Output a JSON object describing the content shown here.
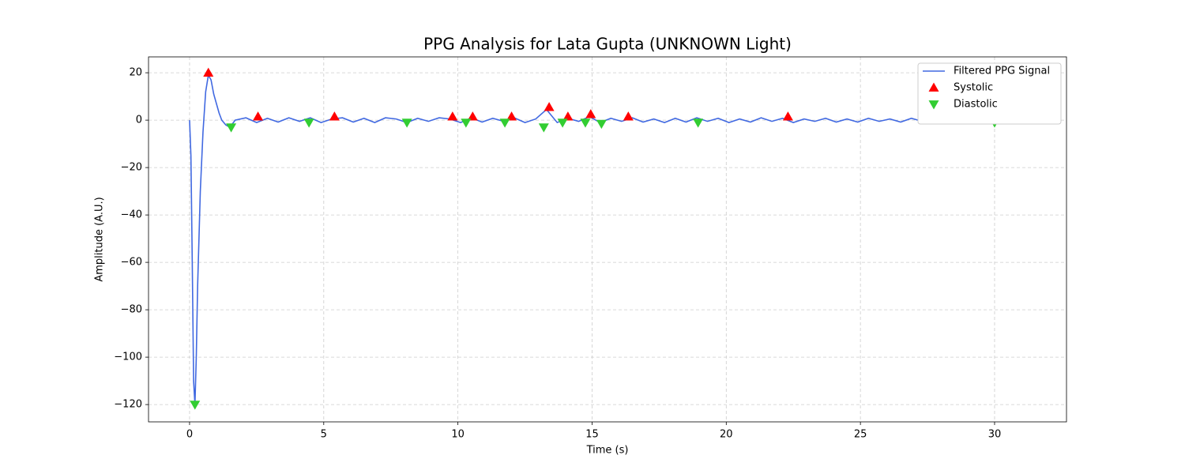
{
  "chart_data": {
    "type": "line",
    "title": "PPG Analysis for Lata Gupta (UNKNOWN Light)",
    "x_label": "Time (s)",
    "y_label": "Amplitude (A.U.)",
    "xlim": [
      -1.53,
      32.68
    ],
    "ylim": [
      -127.3,
      26.7
    ],
    "xticks": [
      0,
      5,
      10,
      15,
      20,
      25,
      30
    ],
    "yticks": [
      {
        "value": -120,
        "label": "−120"
      },
      {
        "value": -100,
        "label": "−100"
      },
      {
        "value": -80,
        "label": "−80"
      },
      {
        "value": -60,
        "label": "−60"
      },
      {
        "value": -40,
        "label": "−40"
      },
      {
        "value": -20,
        "label": "−20"
      },
      0,
      20
    ],
    "grid": true,
    "legend": "upper right",
    "series": [
      {
        "name": "Filtered PPG Signal",
        "type": "line",
        "color": "#4169e1",
        "x": [
          0,
          0.05,
          0.1,
          0.15,
          0.2,
          0.25,
          0.3,
          0.4,
          0.5,
          0.6,
          0.7,
          0.8,
          0.9,
          1.0,
          1.1,
          1.2,
          1.35,
          1.5,
          1.7,
          2.1,
          2.5,
          2.9,
          3.3,
          3.7,
          4.1,
          4.5,
          4.9,
          5.3,
          5.7,
          6.1,
          6.5,
          6.9,
          7.3,
          7.7,
          8.1,
          8.5,
          8.9,
          9.3,
          9.7,
          10.1,
          10.5,
          10.9,
          11.3,
          11.7,
          12.1,
          12.5,
          12.9,
          13.3,
          13.7,
          14.1,
          14.5,
          14.9,
          15.3,
          15.7,
          16.1,
          16.5,
          16.9,
          17.3,
          17.7,
          18.1,
          18.5,
          18.9,
          19.3,
          19.7,
          20.1,
          20.5,
          20.9,
          21.3,
          21.7,
          22.1,
          22.5,
          22.9,
          23.3,
          23.7,
          24.1,
          24.5,
          24.9,
          25.3,
          25.7,
          26.1,
          26.5,
          26.9,
          27.3,
          27.7,
          28.1,
          28.5,
          28.9,
          29.3,
          29.7,
          30.1,
          30.5,
          30.9,
          31.1
        ],
        "values": [
          0,
          -15,
          -60,
          -110,
          -120,
          -100,
          -70,
          -30,
          -5,
          12,
          19,
          17,
          11,
          7,
          3,
          0,
          -2,
          -3,
          0,
          1,
          -1,
          0.8,
          -0.8,
          1,
          -0.5,
          1,
          -1,
          0.5,
          1,
          -0.8,
          0.8,
          -1,
          1,
          0.5,
          -1,
          0.8,
          -0.5,
          1,
          0.5,
          -1,
          1,
          -0.8,
          0.8,
          -0.5,
          1,
          -1,
          0.5,
          4.5,
          -1,
          0.8,
          -0.5,
          1.5,
          -1,
          0.8,
          -0.5,
          1,
          -0.8,
          0.5,
          -1,
          0.8,
          -0.8,
          1,
          -0.5,
          0.8,
          -1,
          0.5,
          -0.8,
          1,
          -0.5,
          0.8,
          -1,
          0.5,
          -0.5,
          0.8,
          -0.8,
          0.5,
          -0.8,
          0.8,
          -0.5,
          0.5,
          -0.8,
          0.8,
          -0.5,
          0.8,
          -0.8,
          0.5,
          -0.5,
          0.8,
          -0.5,
          1,
          -0.8,
          0.5,
          0
        ]
      },
      {
        "name": "Systolic",
        "type": "scatter",
        "marker": "triangle-up",
        "color": "#ff0000",
        "x": [
          0.7,
          2.55,
          5.4,
          9.8,
          10.55,
          12.0,
          13.4,
          14.1,
          14.95,
          16.35,
          22.3
        ],
        "values": [
          20,
          1.5,
          1.5,
          1.5,
          1.5,
          1.5,
          5.5,
          1.5,
          2.5,
          1.5,
          1.5
        ]
      },
      {
        "name": "Diastolic",
        "type": "scatter",
        "marker": "triangle-down",
        "color": "#32cd32",
        "x": [
          0.2,
          1.55,
          4.45,
          8.1,
          10.3,
          11.75,
          13.2,
          13.9,
          14.75,
          15.35,
          18.95,
          30.0
        ],
        "values": [
          -120,
          -3,
          -1,
          -1,
          -1,
          -1,
          -3,
          -1,
          -1,
          -1.5,
          -1,
          -1
        ]
      }
    ]
  }
}
